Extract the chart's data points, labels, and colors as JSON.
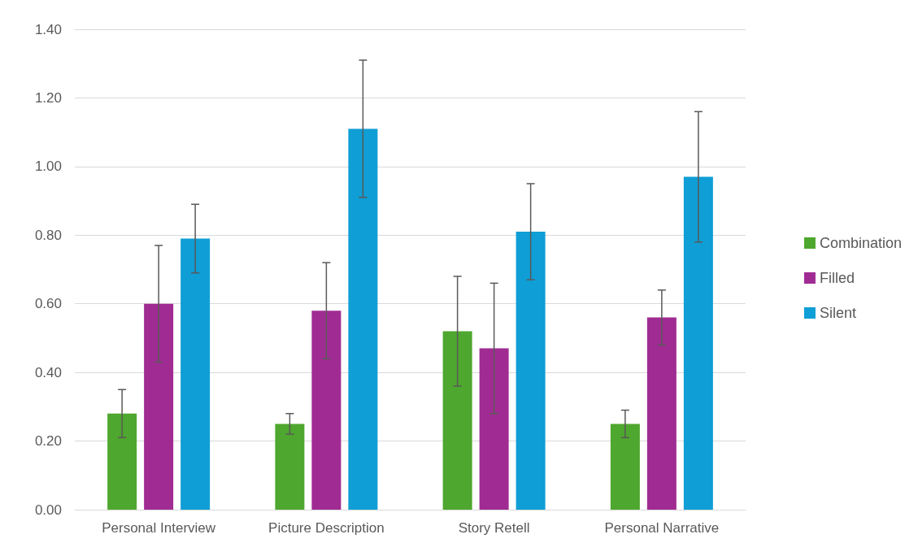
{
  "chart_data": {
    "type": "bar",
    "categories": [
      "Personal Interview",
      "Picture Description",
      "Story Retell",
      "Personal Narrative"
    ],
    "series": [
      {
        "name": "Combination",
        "color": "#4ea72e",
        "values": [
          0.28,
          0.25,
          0.52,
          0.25
        ],
        "errors": [
          0.07,
          0.03,
          0.16,
          0.04
        ]
      },
      {
        "name": "Filled",
        "color": "#a02b93",
        "values": [
          0.6,
          0.58,
          0.47,
          0.56
        ],
        "errors": [
          0.17,
          0.14,
          0.19,
          0.08
        ]
      },
      {
        "name": "Silent",
        "color": "#0f9ed5",
        "values": [
          0.79,
          1.11,
          0.81,
          0.97
        ],
        "errors": [
          0.1,
          0.2,
          0.14,
          0.19
        ]
      }
    ],
    "ylim": [
      0,
      1.4
    ],
    "yticks": [
      {
        "value": 0,
        "label": "0.00"
      },
      {
        "value": 0.2,
        "label": "0.20"
      },
      {
        "value": 0.4,
        "label": "0.40"
      },
      {
        "value": 0.6,
        "label": "0.60"
      },
      {
        "value": 0.8,
        "label": "0.80"
      },
      {
        "value": 1.0,
        "label": "1.00"
      },
      {
        "value": 1.2,
        "label": "1.20"
      },
      {
        "value": 1.4,
        "label": "1.40"
      }
    ],
    "grid": "y",
    "legend": "right"
  }
}
